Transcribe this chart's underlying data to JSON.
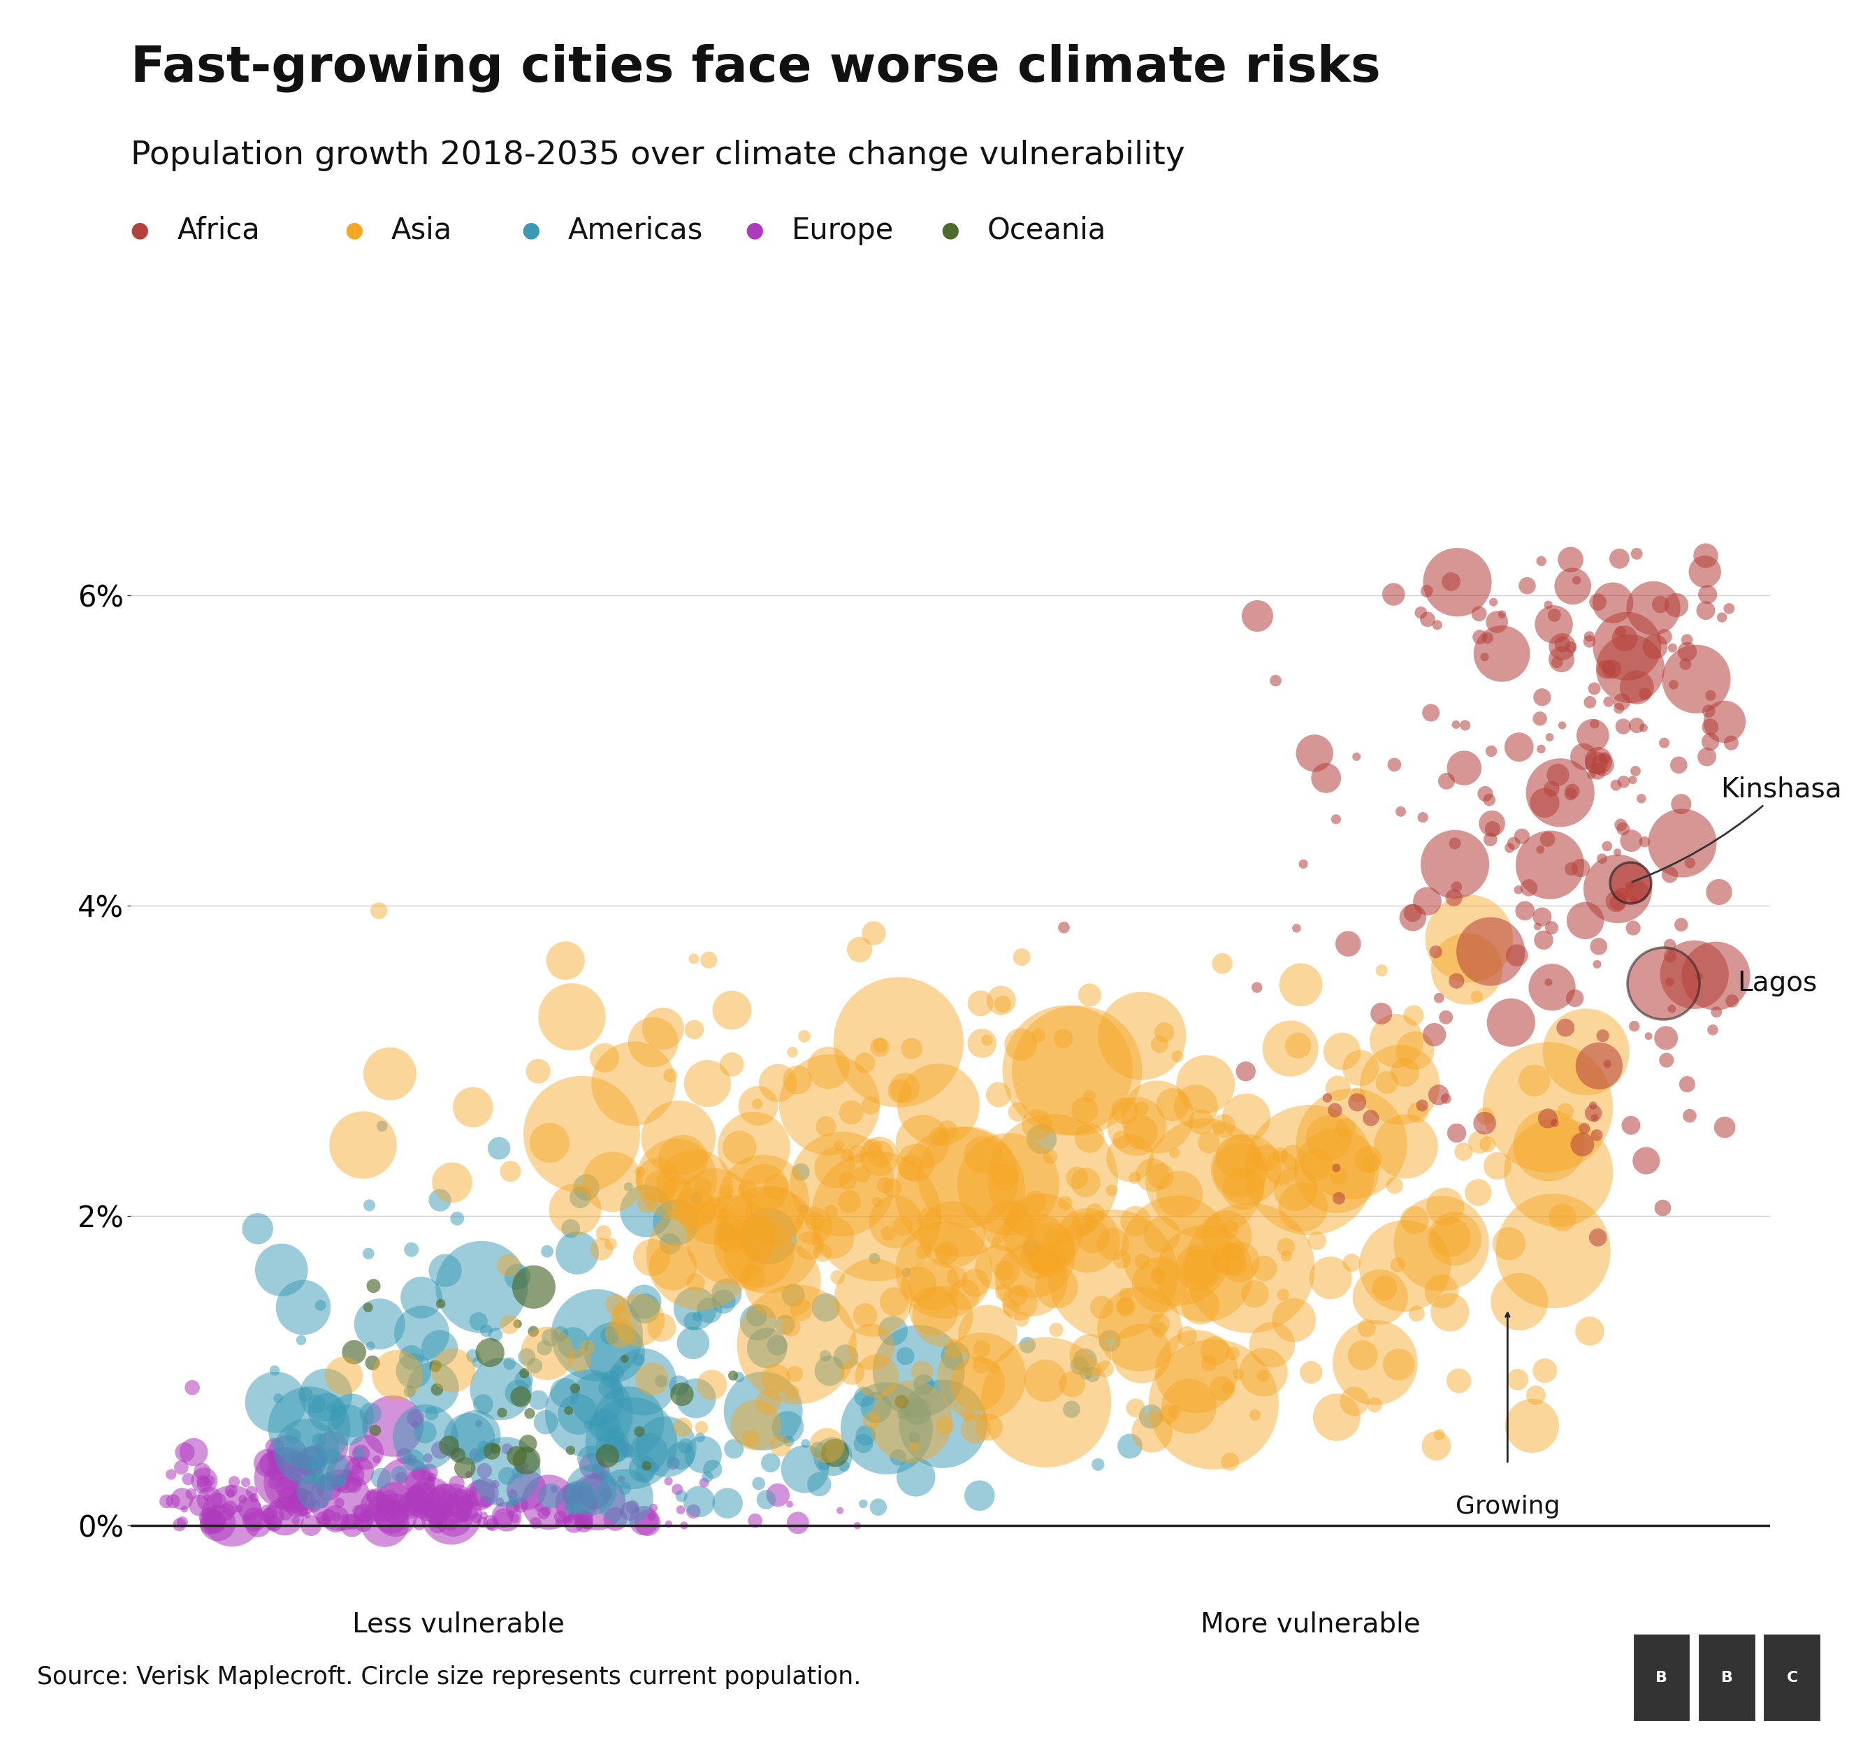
{
  "title": "Fast-growing cities face worse climate risks",
  "subtitle": "Population growth 2018-2035 over climate change vulnerability",
  "source": "Source: Verisk Maplecroft. Circle size represents current population.",
  "title_fontsize": 52,
  "subtitle_fontsize": 34,
  "legend_fontsize": 30,
  "source_fontsize": 25,
  "regions": {
    "Africa": {
      "color": "#b5413a",
      "alpha": 0.55
    },
    "Asia": {
      "color": "#f5a623",
      "alpha": 0.45
    },
    "Americas": {
      "color": "#3a9ab5",
      "alpha": 0.5
    },
    "Europe": {
      "color": "#b03abe",
      "alpha": 0.55
    },
    "Oceania": {
      "color": "#4e6b2e",
      "alpha": 0.65
    }
  },
  "xlim": [
    0,
    1
  ],
  "ylim": [
    -0.003,
    0.068
  ],
  "yticks": [
    0.0,
    0.02,
    0.04,
    0.06
  ],
  "ytick_labels": [
    "0%",
    "2%",
    "4%",
    "6%"
  ],
  "background_color": "#ffffff",
  "seed": 42
}
